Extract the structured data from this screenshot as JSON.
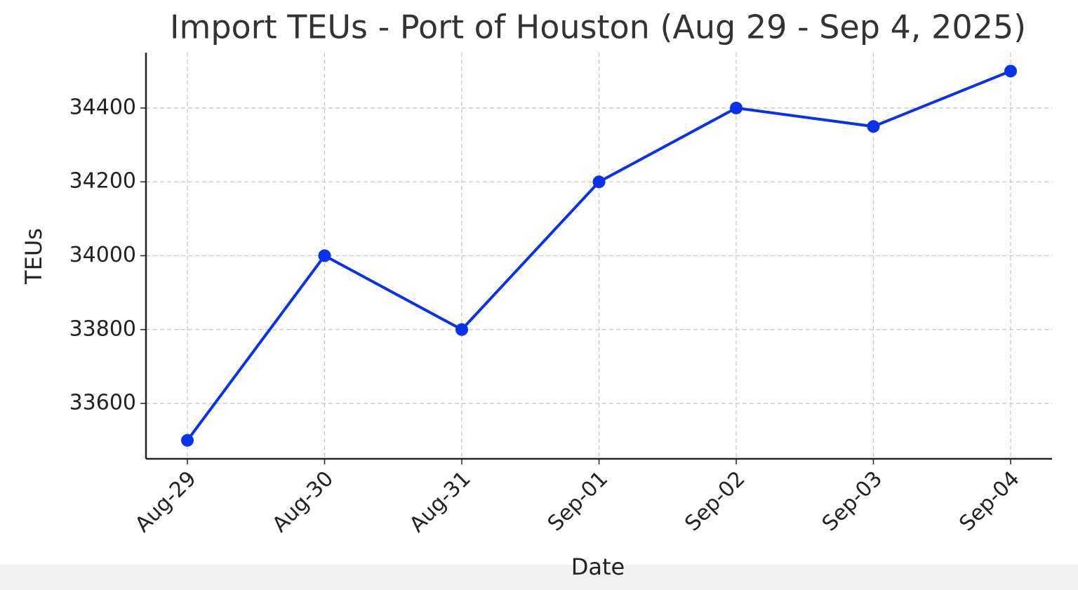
{
  "chart_data": {
    "type": "line",
    "title": "Import TEUs - Port of Houston (Aug 29 - Sep 4, 2025)",
    "x_label": "Date",
    "y_label": "TEUs",
    "categories": [
      "Aug-29",
      "Aug-30",
      "Aug-31",
      "Sep-01",
      "Sep-02",
      "Sep-03",
      "Sep-04"
    ],
    "series": [
      {
        "name": "Import TEUs",
        "color": "#0a32e8",
        "values": [
          33500,
          34000,
          33800,
          34200,
          34400,
          34350,
          34500
        ]
      }
    ],
    "ylim": [
      33450,
      34550
    ],
    "yticks": [
      33600,
      33800,
      34000,
      34200,
      34400
    ],
    "grid": true
  }
}
